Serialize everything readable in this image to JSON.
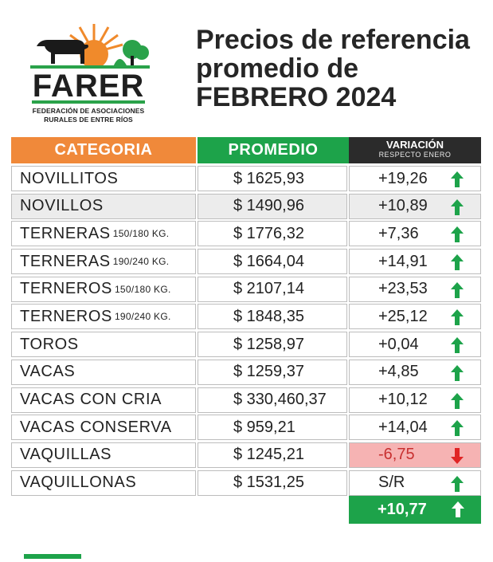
{
  "logo": {
    "word": "FARER",
    "subtitle_line1": "FEDERACIÓN DE ASOCIACIONES",
    "subtitle_line2": "RURALES DE ENTRE RÍOS"
  },
  "title": {
    "line1": "Precios de referencia",
    "line2": "promedio de",
    "line3": "FEBRERO 2024"
  },
  "table": {
    "headers": {
      "category": "CATEGORIA",
      "average": "PROMEDIO",
      "variation": "VARIACIÓN",
      "variation_sub": "RESPECTO ENERO"
    },
    "rows": [
      {
        "category": "NOVILLITOS",
        "sub": "",
        "average": "$ 1625,93",
        "variation": "+19,26",
        "trend": "up"
      },
      {
        "category": "NOVILLOS",
        "sub": "",
        "average": "$ 1490,96",
        "variation": "+10,89",
        "trend": "up"
      },
      {
        "category": "TERNERAS",
        "sub": "150/180 KG.",
        "average": "$ 1776,32",
        "variation": "+7,36",
        "trend": "up"
      },
      {
        "category": "TERNERAS",
        "sub": "190/240 KG.",
        "average": "$ 1664,04",
        "variation": "+14,91",
        "trend": "up"
      },
      {
        "category": "TERNEROS",
        "sub": "150/180 KG.",
        "average": "$ 2107,14",
        "variation": "+23,53",
        "trend": "up"
      },
      {
        "category": "TERNEROS",
        "sub": "190/240 KG.",
        "average": "$ 1848,35",
        "variation": "+25,12",
        "trend": "up"
      },
      {
        "category": "TOROS",
        "sub": "",
        "average": "$ 1258,97",
        "variation": "+0,04",
        "trend": "up"
      },
      {
        "category": "VACAS",
        "sub": "",
        "average": "$ 1259,37",
        "variation": "+4,85",
        "trend": "up"
      },
      {
        "category": "VACAS CON CRIA",
        "sub": "",
        "average": "$ 330,460,37",
        "variation": "+10,12",
        "trend": "up"
      },
      {
        "category": "VACAS CONSERVA",
        "sub": "",
        "average": "$ 959,21",
        "variation": "+14,04",
        "trend": "up"
      },
      {
        "category": "VAQUILLAS",
        "sub": "",
        "average": "$ 1245,21",
        "variation": "-6,75",
        "trend": "down"
      },
      {
        "category": "VAQUILLONAS",
        "sub": "",
        "average": "$ 1531,25",
        "variation": "S/R",
        "trend": "up"
      }
    ],
    "total_variation": "+10,77"
  },
  "colors": {
    "orange": "#f0893a",
    "green": "#1da34a",
    "dark": "#2b2b2b",
    "negative_bg": "#f6b3b3",
    "negative_arrow": "#e02424"
  }
}
